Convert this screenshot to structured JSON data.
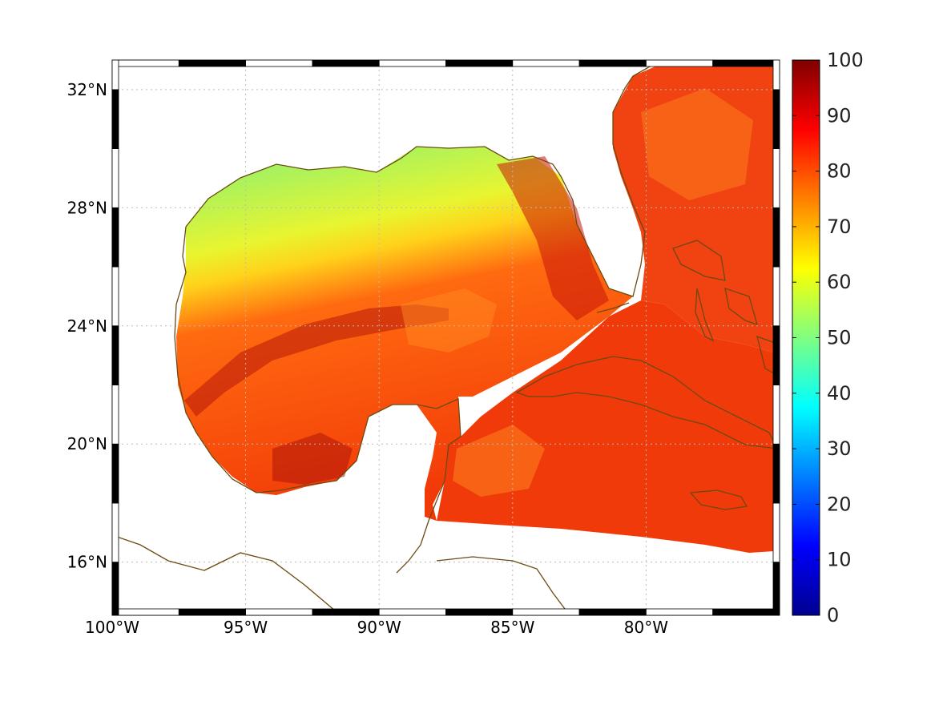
{
  "map": {
    "lon_range": [
      -100,
      -75
    ],
    "lat_range": [
      14.2,
      33
    ],
    "lon_ticks": [
      {
        "value": -100,
        "label": "100°W"
      },
      {
        "value": -95,
        "label": "95°W"
      },
      {
        "value": -90,
        "label": "90°W"
      },
      {
        "value": -85,
        "label": "85°W"
      },
      {
        "value": -80,
        "label": "80°W"
      }
    ],
    "lat_ticks": [
      {
        "value": 16,
        "label": "16°N"
      },
      {
        "value": 20,
        "label": "20°N"
      },
      {
        "value": 24,
        "label": "24°N"
      },
      {
        "value": 28,
        "label": "28°N"
      },
      {
        "value": 32,
        "label": "32°N"
      }
    ],
    "gridlines": true,
    "colors": {
      "coastline": "#6b4a10",
      "gridline": "#bbbbbb",
      "land": "#ffffff"
    }
  },
  "colorbar": {
    "min": 0,
    "max": 100,
    "ticks": [
      {
        "value": 0,
        "label": "0"
      },
      {
        "value": 10,
        "label": "10"
      },
      {
        "value": 20,
        "label": "20"
      },
      {
        "value": 30,
        "label": "30"
      },
      {
        "value": 40,
        "label": "40"
      },
      {
        "value": 50,
        "label": "50"
      },
      {
        "value": 60,
        "label": "60"
      },
      {
        "value": 70,
        "label": "70"
      },
      {
        "value": 80,
        "label": "80"
      },
      {
        "value": 90,
        "label": "90"
      },
      {
        "value": 100,
        "label": "100"
      }
    ],
    "colormap": "jet"
  },
  "field": {
    "northern_gulf_shelf_value": 55,
    "loop_current_value": 90,
    "caribbean_value": 86,
    "atlantic_value": 85
  }
}
